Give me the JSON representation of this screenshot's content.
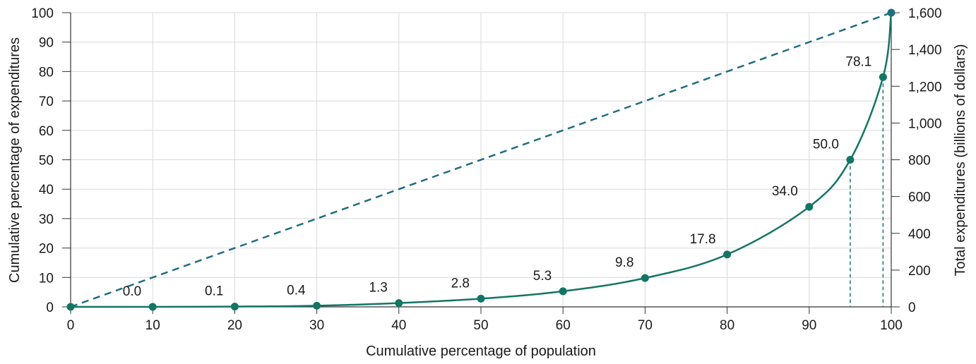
{
  "chart_data": {
    "type": "line",
    "title": "",
    "xlabel": "Cumulative percentage of population",
    "ylabel": "Cumulative percentage of expenditures",
    "y2label": "Total expenditures (billions of dollars)",
    "xlim": [
      0,
      100
    ],
    "ylim": [
      0,
      100
    ],
    "y2lim": [
      0,
      1600
    ],
    "x_ticks": [
      "0",
      "10",
      "20",
      "30",
      "40",
      "50",
      "60",
      "70",
      "80",
      "90",
      "100"
    ],
    "y_ticks": [
      "0",
      "10",
      "20",
      "30",
      "40",
      "50",
      "60",
      "70",
      "80",
      "90",
      "100"
    ],
    "y2_ticks": [
      "0",
      "200",
      "400",
      "600",
      "800",
      "1,000",
      "1,200",
      "1,400",
      "1,600"
    ],
    "grid": true,
    "series": [
      {
        "type": "line",
        "style": "solid",
        "color": "#137564",
        "x": [
          0,
          10,
          20,
          30,
          40,
          50,
          60,
          70,
          80,
          90,
          95,
          99,
          100
        ],
        "y": [
          0,
          0.0,
          0.1,
          0.4,
          1.3,
          2.8,
          5.3,
          9.8,
          17.8,
          34.0,
          50.0,
          78.1,
          100
        ],
        "labels": [
          "",
          "0.0",
          "0.1",
          "0.4",
          "1.3",
          "2.8",
          "5.3",
          "9.8",
          "17.8",
          "34.0",
          "50.0",
          "78.1",
          ""
        ]
      },
      {
        "type": "line",
        "style": "dashed",
        "color": "#1f6e80",
        "x": [
          0,
          100
        ],
        "y": [
          0,
          100
        ]
      }
    ],
    "drop_lines_x": [
      95,
      99
    ]
  },
  "colors": {
    "curve": "#137564",
    "equality": "#1f6e80",
    "last_point": "#1f6e80",
    "grid": "#d9d9d9",
    "axis": "#333333"
  }
}
